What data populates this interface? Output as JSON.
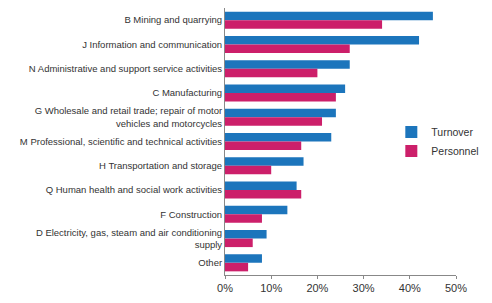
{
  "chart_data": {
    "type": "bar",
    "orientation": "horizontal",
    "categories": [
      "B Mining and quarrying",
      "J Information and communication",
      "N Administrative and support service activities",
      "C Manufacturing",
      "G Wholesale and retail trade; repair of motor vehicles and motorcycles",
      "M Professional, scientific and technical activities",
      "H Transportation and storage",
      "Q Human health and social work activities",
      "F Construction",
      "D Electricity, gas, steam and air conditioning supply",
      "Other"
    ],
    "series": [
      {
        "name": "Turnover",
        "color": "#1c75bc",
        "values": [
          45,
          42,
          27,
          26,
          24,
          23,
          17,
          15.5,
          13.5,
          9,
          8
        ]
      },
      {
        "name": "Personnel",
        "color": "#cc1f6a",
        "values": [
          34,
          27,
          20,
          24,
          21,
          16.5,
          10,
          16.5,
          8,
          6,
          5
        ]
      }
    ],
    "xlim": [
      0,
      50
    ],
    "xticks": [
      {
        "value": 0,
        "label": "0%"
      },
      {
        "value": 10,
        "label": "10%"
      },
      {
        "value": 20,
        "label": "20%"
      },
      {
        "value": 30,
        "label": "30%"
      },
      {
        "value": 40,
        "label": "40%"
      },
      {
        "value": 50,
        "label": "50%"
      }
    ],
    "grid": false,
    "legend": "right"
  }
}
